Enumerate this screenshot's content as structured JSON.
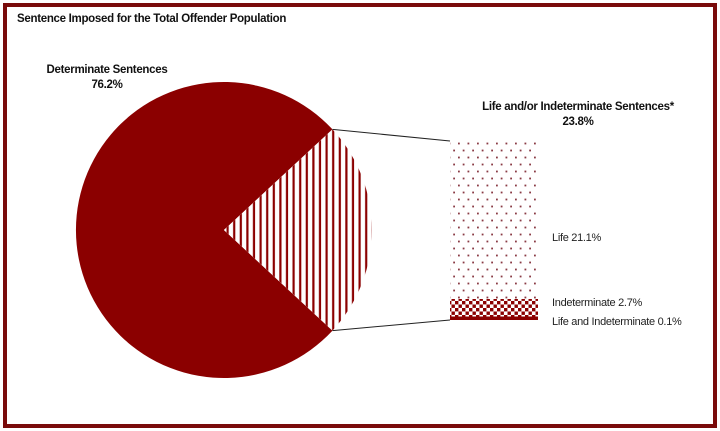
{
  "title": "Sentence Imposed for the Total Offender Population",
  "colors": {
    "maroon": "#8B0000",
    "border": "#7a0b0b",
    "dot": "#8a3b45",
    "callout": "#222222",
    "white": "#ffffff"
  },
  "labels": {
    "determinate_line1": "Determinate Sentences",
    "determinate_line2": "76.2%",
    "life_indet_line1": "Life and/or Indeterminate Sentences*",
    "life_indet_line2": "23.8%",
    "bar_life": "Life 21.1%",
    "bar_indeterminate": "Indeterminate 2.7%",
    "bar_life_and_indeterminate": "Life and Indeterminate 0.1%"
  },
  "chart_data": {
    "type": "pie",
    "title": "Sentence Imposed for the Total Offender Population",
    "units": "percent",
    "legend_position": "none",
    "slices": [
      {
        "label": "Determinate Sentences",
        "value": 76.2,
        "fill": "solid-maroon"
      },
      {
        "label": "Life and/or Indeterminate Sentences*",
        "value": 23.8,
        "fill": "vertical-stripes"
      }
    ],
    "exploded_breakdown": {
      "of_slice": "Life and/or Indeterminate Sentences*",
      "segments": [
        {
          "label": "Life",
          "value": 21.1,
          "fill": "dots"
        },
        {
          "label": "Indeterminate",
          "value": 2.7,
          "fill": "checker"
        },
        {
          "label": "Life and Indeterminate",
          "value": 0.1,
          "fill": "solid-maroon"
        }
      ]
    }
  }
}
